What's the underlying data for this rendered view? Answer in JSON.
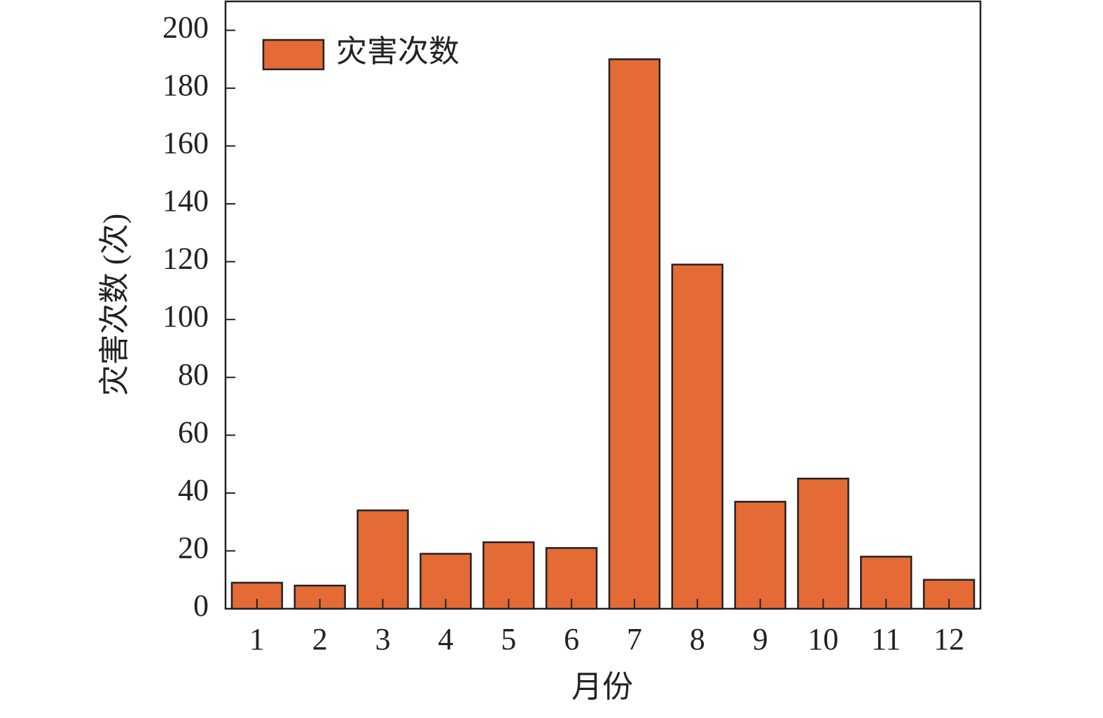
{
  "chart_data": {
    "type": "bar",
    "x_label": "月份",
    "y_label": "灾害次数 (次)",
    "categories": [
      "1",
      "2",
      "3",
      "4",
      "5",
      "6",
      "7",
      "8",
      "9",
      "10",
      "11",
      "12"
    ],
    "series": [
      {
        "name": "灾害次数",
        "color": "#e46a36",
        "values": [
          9,
          8,
          34,
          19,
          23,
          21,
          190,
          119,
          37,
          45,
          18,
          10
        ]
      }
    ],
    "ylim": [
      0,
      210
    ],
    "yticks": [
      0,
      20,
      40,
      60,
      80,
      100,
      120,
      140,
      160,
      180,
      200
    ],
    "grid": false,
    "legend": "upper-left"
  }
}
